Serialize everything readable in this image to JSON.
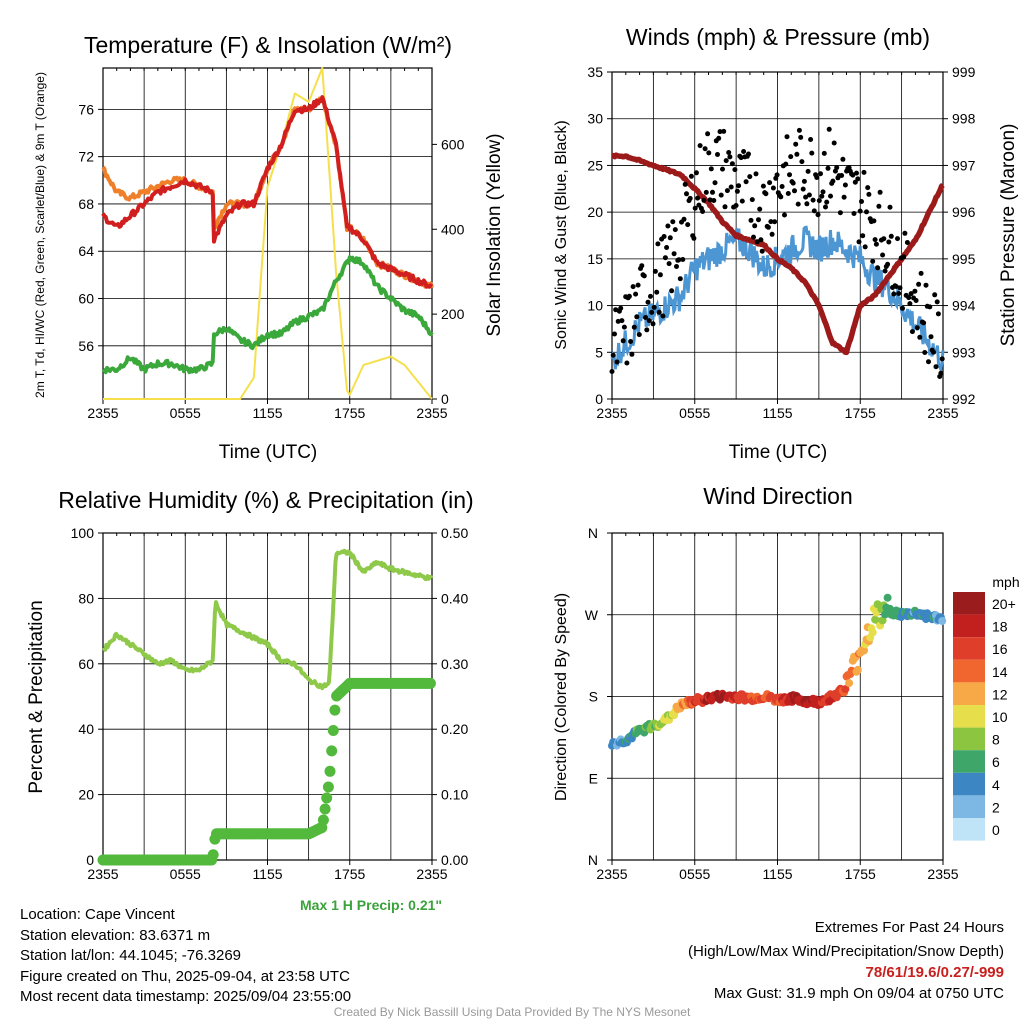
{
  "colors": {
    "red": "#d11f1f",
    "orange": "#f07f2a",
    "green": "#3aa83a",
    "yellow": "#f5e04c",
    "blue": "#4d96d4",
    "black": "#000000",
    "maroon": "#9c1a1a",
    "lightgreen": "#8ec94a",
    "precip": "#52b93c",
    "dark_green_text": "#3aa23a",
    "highlight_red": "#c8201e"
  },
  "chart_data": [
    {
      "type": "line",
      "title": "Temperature (F) & Insolation (W/m²)",
      "xlabel": "Time (UTC)",
      "ylabel_left": "2m T, Td, HI/WC (Red, Green, Scarlet/Blue) & 9m T (Orange)",
      "ylabel_right": "Solar Insolation (Yellow)",
      "x_ticks": [
        "2355",
        "0555",
        "1155",
        "1755",
        "2355"
      ],
      "ylim_left": [
        51.5,
        79.5
      ],
      "y_ticks_left": [
        56,
        60,
        64,
        68,
        72,
        76
      ],
      "ylim_right": [
        0,
        780
      ],
      "y_ticks_right": [
        0,
        200,
        400,
        600
      ],
      "x_hours": [
        0,
        1,
        2,
        3,
        4,
        5,
        6,
        7,
        8,
        8.1,
        9,
        10,
        11,
        12,
        13,
        14,
        15,
        16,
        17,
        17.8,
        18,
        19,
        20,
        21,
        22,
        23,
        24
      ],
      "series": [
        {
          "name": "2m T",
          "color_key": "red",
          "axis": "left",
          "values": [
            67,
            66,
            67,
            68,
            69,
            69.5,
            70,
            69.5,
            69,
            65,
            67,
            68,
            68,
            71,
            73,
            76,
            76,
            77,
            73,
            66,
            66,
            65,
            63,
            62.5,
            62,
            61.5,
            61
          ]
        },
        {
          "name": "9m T",
          "color_key": "orange",
          "axis": "left",
          "values": [
            71,
            69,
            68.5,
            69,
            69.5,
            70,
            70,
            69.5,
            69,
            66,
            68,
            68,
            68,
            71,
            73,
            76,
            76,
            77,
            73,
            66,
            66,
            65,
            63,
            62.5,
            62,
            61.5,
            61
          ]
        },
        {
          "name": "2m Td",
          "color_key": "green",
          "axis": "left",
          "values": [
            54,
            54,
            55,
            54,
            54.5,
            54.5,
            54,
            54,
            54.5,
            57,
            57.5,
            56.5,
            56,
            57,
            57,
            58,
            58.5,
            59,
            61.5,
            63,
            63.5,
            63,
            61,
            60,
            59,
            58.5,
            57
          ]
        },
        {
          "name": "Solar Insolation",
          "color_key": "yellow",
          "axis": "right",
          "values": [
            0,
            0,
            0,
            0,
            0,
            0,
            0,
            0,
            0,
            0,
            0,
            0,
            50,
            500,
            600,
            720,
            700,
            780,
            300,
            20,
            10,
            80,
            90,
            100,
            80,
            40,
            0
          ]
        }
      ]
    },
    {
      "type": "line",
      "title": "Winds (mph) & Pressure (mb)",
      "xlabel": "Time (UTC)",
      "ylabel_left": "Sonic Wind & Gust (Blue, Black)",
      "ylabel_right": "Station Pressure (Maroon)",
      "x_ticks": [
        "2355",
        "0555",
        "1155",
        "1755",
        "2355"
      ],
      "ylim_left": [
        0,
        35
      ],
      "y_ticks_left": [
        0,
        5,
        10,
        15,
        20,
        25,
        30,
        35
      ],
      "ylim_right": [
        992,
        999
      ],
      "y_ticks_right": [
        992,
        993,
        994,
        995,
        996,
        997,
        998,
        999
      ],
      "x_hours": [
        0,
        1,
        2,
        3,
        4,
        5,
        6,
        7,
        8,
        9,
        10,
        11,
        12,
        13,
        14,
        15,
        16,
        17,
        18,
        19,
        20,
        21,
        22,
        23,
        24
      ],
      "series": [
        {
          "name": "Sonic Wind",
          "color_key": "blue",
          "axis": "left",
          "values": [
            4,
            6,
            8,
            9,
            10,
            11,
            14,
            15,
            16,
            17,
            16,
            14,
            15,
            16,
            17,
            16,
            17,
            16,
            15,
            13,
            12,
            10,
            8,
            6,
            4
          ]
        },
        {
          "name": "Gust",
          "color_key": "black",
          "axis": "left",
          "style": "dots",
          "values": [
            5,
            7,
            10,
            12,
            14,
            17,
            22,
            25,
            25,
            23,
            22,
            20,
            23,
            24,
            25,
            24,
            25,
            22,
            21,
            19,
            17,
            14,
            11,
            8,
            5
          ]
        },
        {
          "name": "Station Pressure",
          "color_key": "maroon",
          "axis": "right",
          "values": [
            997.2,
            997.2,
            997.1,
            997.0,
            996.9,
            996.8,
            996.5,
            996.2,
            995.8,
            995.5,
            995.4,
            995.3,
            995.0,
            994.8,
            994.5,
            994.0,
            993.2,
            993.0,
            994.0,
            994.2,
            994.6,
            995.0,
            995.4,
            996.0,
            996.6
          ]
        }
      ]
    },
    {
      "type": "line",
      "title": "Relative Humidity (%) & Precipitation (in)",
      "ylabel_left": "Percent & Precipitation",
      "x_ticks": [
        "2355",
        "0555",
        "1155",
        "1755",
        "2355"
      ],
      "ylim_left": [
        0,
        100
      ],
      "y_ticks_left": [
        0,
        20,
        40,
        60,
        80,
        100
      ],
      "ylim_right": [
        0,
        0.5
      ],
      "y_ticks_right": [
        "0.00",
        "0.10",
        "0.20",
        "0.30",
        "0.40",
        "0.50"
      ],
      "x_hours": [
        0,
        1,
        2,
        3,
        4,
        5,
        6,
        7,
        8,
        8.2,
        9,
        10,
        11,
        12,
        13,
        14,
        15,
        16,
        16.5,
        17,
        18,
        19,
        20,
        21,
        22,
        23,
        24
      ],
      "series": [
        {
          "name": "Relative Humidity",
          "color_key": "lightgreen",
          "axis": "left",
          "values": [
            64,
            69,
            66,
            63,
            60,
            61,
            58,
            58,
            61,
            79,
            72,
            70,
            68,
            66,
            61,
            60,
            55,
            53,
            54,
            94,
            94,
            88,
            91,
            89,
            88,
            87,
            86
          ]
        },
        {
          "name": "Precipitation",
          "color_key": "precip",
          "axis": "right",
          "values": [
            0,
            0,
            0,
            0,
            0,
            0,
            0,
            0,
            0,
            0.04,
            0.04,
            0.04,
            0.04,
            0.04,
            0.04,
            0.04,
            0.04,
            0.05,
            0.12,
            0.25,
            0.27,
            0.27,
            0.27,
            0.27,
            0.27,
            0.27,
            0.27
          ]
        }
      ]
    },
    {
      "type": "scatter",
      "title": "Wind Direction",
      "ylabel_left": "Direction (Colored By Speed)",
      "x_ticks": [
        "2355",
        "0555",
        "1155",
        "1755",
        "2355"
      ],
      "y_ticks_left": [
        "N",
        "E",
        "S",
        "W",
        "N"
      ],
      "ylim_degrees": [
        0,
        360
      ],
      "x_hours": [
        0,
        1,
        2,
        3,
        4,
        5,
        6,
        7,
        8,
        9,
        10,
        11,
        12,
        13,
        14,
        15,
        16,
        17,
        18,
        19,
        20,
        21,
        22,
        23,
        24
      ],
      "direction_deg": [
        128,
        132,
        142,
        148,
        155,
        170,
        175,
        178,
        180,
        180,
        178,
        180,
        176,
        178,
        175,
        174,
        180,
        190,
        230,
        265,
        275,
        270,
        272,
        268,
        265
      ],
      "speed_mph": [
        3,
        4,
        6,
        8,
        9,
        12,
        16,
        18,
        19,
        17,
        15,
        14,
        16,
        18,
        19,
        17,
        16,
        14,
        12,
        10,
        7,
        5,
        4,
        4,
        3
      ],
      "colorbar": {
        "label": "mph",
        "levels": [
          "20+",
          "18",
          "16",
          "14",
          "12",
          "10",
          "8",
          "6",
          "4",
          "2",
          "0"
        ],
        "colors": [
          "#9b1c1c",
          "#c1201f",
          "#de3e2a",
          "#f0662e",
          "#f7a847",
          "#e6de4a",
          "#8cc641",
          "#3fa66a",
          "#3c86c3",
          "#7db8e4",
          "#bfe3f7"
        ]
      }
    }
  ],
  "info": {
    "location": "Location: Cape Vincent",
    "elevation": "Station elevation: 83.6371 m",
    "latlon": "Station lat/lon: 44.1045; -76.3269",
    "created": "Figure created on Thu, 2025-09-04, at 23:58 UTC",
    "recent": "Most recent data timestamp: 2025/09/04 23:55:00",
    "max_precip": "Max 1 H Precip: 0.21\"",
    "extremes_title": "Extremes For Past 24 Hours",
    "extremes_sub": "(High/Low/Max Wind/Precipitation/Snow Depth)",
    "extremes_values": "78/61/19.6/0.27/-999",
    "max_gust": "Max Gust: 31.9 mph On 09/04 at 0750 UTC",
    "credit": "Created By Nick Bassill Using Data Provided By The NYS Mesonet"
  }
}
